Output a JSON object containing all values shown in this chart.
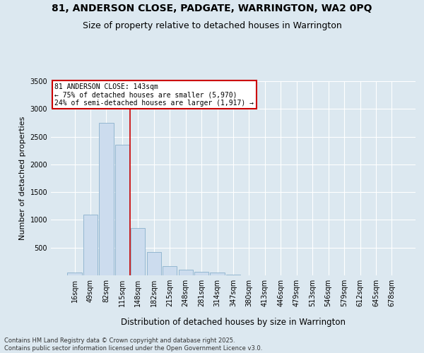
{
  "title": "81, ANDERSON CLOSE, PADGATE, WARRINGTON, WA2 0PQ",
  "subtitle": "Size of property relative to detached houses in Warrington",
  "xlabel": "Distribution of detached houses by size in Warrington",
  "ylabel": "Number of detached properties",
  "categories": [
    "16sqm",
    "49sqm",
    "82sqm",
    "115sqm",
    "148sqm",
    "182sqm",
    "215sqm",
    "248sqm",
    "281sqm",
    "314sqm",
    "347sqm",
    "380sqm",
    "413sqm",
    "446sqm",
    "479sqm",
    "513sqm",
    "546sqm",
    "579sqm",
    "612sqm",
    "645sqm",
    "678sqm"
  ],
  "values": [
    50,
    1100,
    2750,
    2350,
    850,
    420,
    160,
    100,
    70,
    50,
    15,
    5,
    3,
    2,
    1,
    1,
    1,
    0,
    0,
    0,
    0
  ],
  "bar_color": "#ccdcee",
  "bar_edge_color": "#8ab0cc",
  "vline_x": 3.5,
  "vline_color": "#cc0000",
  "annotation_text": "81 ANDERSON CLOSE: 143sqm\n← 75% of detached houses are smaller (5,970)\n24% of semi-detached houses are larger (1,917) →",
  "annotation_box_edge_color": "#cc0000",
  "ylim": [
    0,
    3500
  ],
  "yticks": [
    0,
    500,
    1000,
    1500,
    2000,
    2500,
    3000,
    3500
  ],
  "background_color": "#dce8f0",
  "grid_color": "#ffffff",
  "footer_line1": "Contains HM Land Registry data © Crown copyright and database right 2025.",
  "footer_line2": "Contains public sector information licensed under the Open Government Licence v3.0.",
  "title_fontsize": 10,
  "subtitle_fontsize": 9,
  "xlabel_fontsize": 8.5,
  "ylabel_fontsize": 8,
  "tick_fontsize": 7,
  "annotation_fontsize": 7,
  "footer_fontsize": 6
}
